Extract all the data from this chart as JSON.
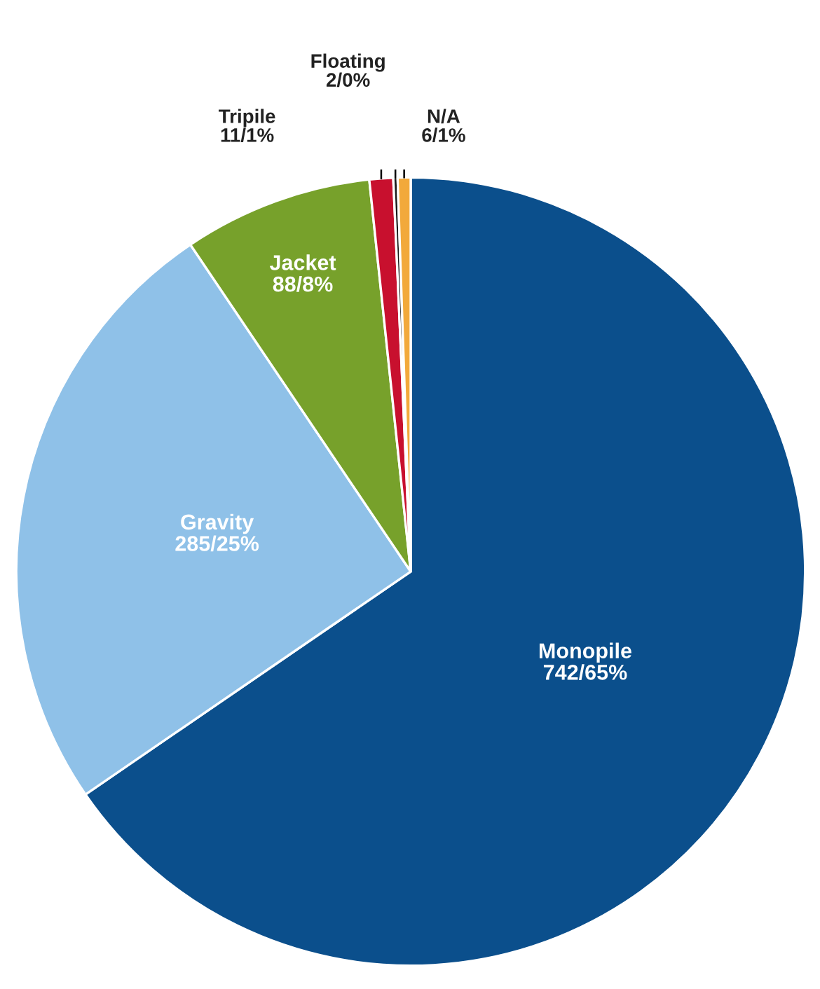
{
  "chart_data": {
    "type": "pie",
    "categories": [
      "Monopile",
      "Gravity",
      "Jacket",
      "Tripile",
      "Floating",
      "N/A"
    ],
    "values": [
      742,
      285,
      88,
      11,
      2,
      6
    ],
    "value_labels": [
      "742/65%",
      "285/25%",
      "88/8%",
      "11/1%",
      "2/0%",
      "6/1%"
    ],
    "colors": [
      "#0b4f8c",
      "#8fc1e8",
      "#77a12b",
      "#c8102e",
      "#1a1a1a",
      "#f2a93b"
    ]
  }
}
